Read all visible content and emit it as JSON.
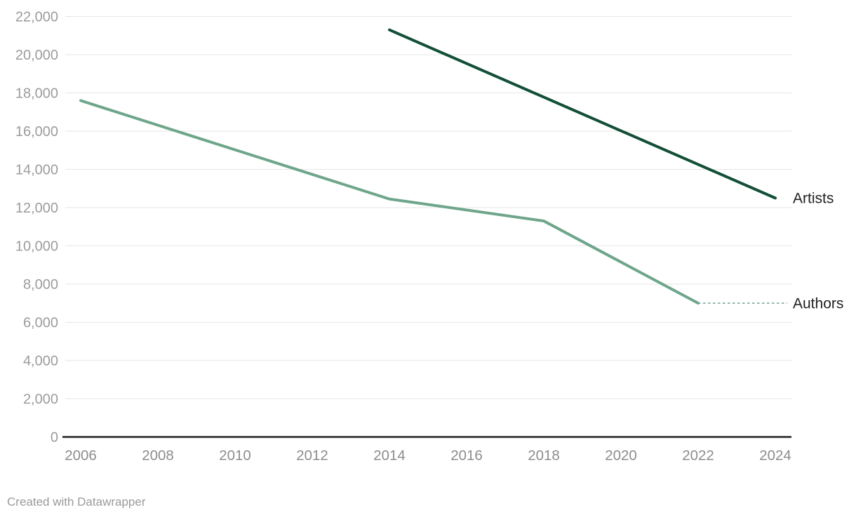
{
  "chart_data": {
    "type": "line",
    "title": "",
    "xlabel": "",
    "ylabel": "",
    "xlim": [
      2006,
      2024
    ],
    "ylim": [
      0,
      22000
    ],
    "x_ticks": [
      2006,
      2008,
      2010,
      2012,
      2014,
      2016,
      2018,
      2020,
      2022,
      2024
    ],
    "y_ticks": [
      0,
      2000,
      4000,
      6000,
      8000,
      10000,
      12000,
      14000,
      16000,
      18000,
      20000,
      22000
    ],
    "grid": "horizontal",
    "legend_position": "direct-labels-right",
    "series": [
      {
        "name": "Artists",
        "color": "#124f36",
        "x": [
          2014,
          2024
        ],
        "values": [
          21300,
          12500
        ],
        "dash_to_label": false
      },
      {
        "name": "Authors",
        "color": "#6ea68b",
        "x": [
          2006,
          2014,
          2018,
          2022
        ],
        "values": [
          17600,
          12450,
          11300,
          7000
        ],
        "dash_to_label": true
      }
    ]
  },
  "colors": {
    "axis": "#1a1a1a",
    "gridline": "#e6e6e6",
    "y_tick_text": "#9c9c9c",
    "x_tick_text": "#8d8d8d",
    "label_text": "#202020"
  },
  "footer": {
    "credit": "Created with Datawrapper"
  }
}
